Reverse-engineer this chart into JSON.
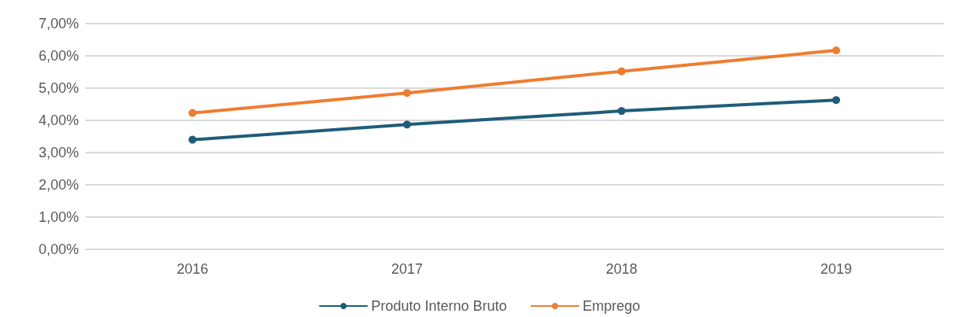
{
  "chart_data": {
    "type": "line",
    "categories": [
      "2016",
      "2017",
      "2018",
      "2019"
    ],
    "series": [
      {
        "name": "Produto Interno Bruto",
        "color": "#1f5c7a",
        "values": [
          3.4,
          3.87,
          4.29,
          4.63
        ]
      },
      {
        "name": "Emprego",
        "color": "#ed7d31",
        "values": [
          4.23,
          4.85,
          5.52,
          6.17
        ]
      }
    ],
    "ylim": [
      0,
      7
    ],
    "yticks": [
      {
        "value": 0,
        "label": "0,00%"
      },
      {
        "value": 1,
        "label": "1,00%"
      },
      {
        "value": 2,
        "label": "2,00%"
      },
      {
        "value": 3,
        "label": "3,00%"
      },
      {
        "value": 4,
        "label": "4,00%"
      },
      {
        "value": 5,
        "label": "5,00%"
      },
      {
        "value": 6,
        "label": "6,00%"
      },
      {
        "value": 7,
        "label": "7,00%"
      }
    ],
    "grid": "y",
    "legend": "bottom",
    "marker": "circle",
    "line_style": "solid"
  }
}
